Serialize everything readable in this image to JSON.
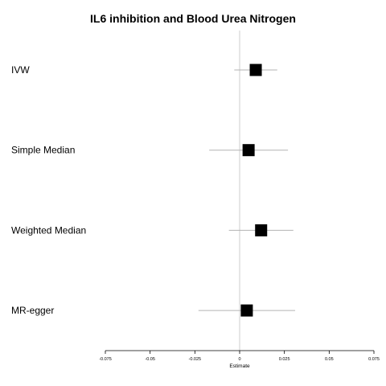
{
  "chart_data": {
    "type": "forest",
    "title": "IL6 inhibition and Blood Urea Nitrogen",
    "xlabel": "Estimate",
    "xlim": [
      -0.075,
      0.075
    ],
    "xticks": [
      -0.075,
      -0.05,
      -0.025,
      0,
      0.025,
      0.05,
      0.075
    ],
    "xtick_labels": [
      "-0.075",
      "-0.05",
      "-0.025",
      "0",
      "0.025",
      "0.05",
      "0.075"
    ],
    "reference_line": 0,
    "grid": false,
    "marker_color": "#000000",
    "ci_color": "#b3b3b3",
    "rows": [
      {
        "label": "IVW",
        "estimate": 0.009,
        "ci_low": -0.003,
        "ci_high": 0.021
      },
      {
        "label": "Simple Median",
        "estimate": 0.005,
        "ci_low": -0.017,
        "ci_high": 0.027
      },
      {
        "label": "Weighted Median",
        "estimate": 0.012,
        "ci_low": -0.006,
        "ci_high": 0.03
      },
      {
        "label": "MR-egger",
        "estimate": 0.004,
        "ci_low": -0.023,
        "ci_high": 0.031
      }
    ]
  }
}
